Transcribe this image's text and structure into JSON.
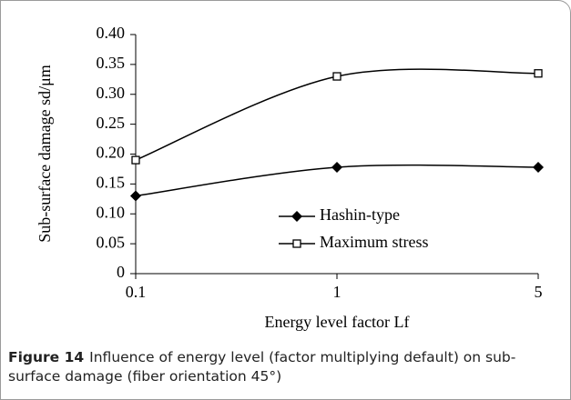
{
  "chart_data": {
    "type": "line",
    "y_label": "Sub-surface damage sd/μm",
    "x_label": "Energy level factor Lf",
    "categories": [
      "0.1",
      "1",
      "5"
    ],
    "series": [
      {
        "name": "Hashin-type",
        "color": "#000000",
        "marker": "diamond",
        "values": [
          0.13,
          0.178,
          0.178
        ]
      },
      {
        "name": "Maximum stress",
        "color": "#000000",
        "marker": "square",
        "values": [
          0.19,
          0.33,
          0.335
        ]
      }
    ],
    "ylim": [
      0,
      0.4
    ],
    "yticks": [
      0,
      {
        "value": 0.05,
        "label": "0.05"
      },
      {
        "value": 0.1,
        "label": "0.10"
      },
      {
        "value": 0.15,
        "label": "0.15"
      },
      {
        "value": 0.2,
        "label": "0.20"
      },
      {
        "value": 0.25,
        "label": "0.25"
      },
      {
        "value": 0.3,
        "label": "0.30"
      },
      {
        "value": 0.35,
        "label": "0.35"
      },
      {
        "value": 0.4,
        "label": "0.40"
      }
    ],
    "grid": false,
    "legend": "center",
    "caption": {
      "label": "Figure 14",
      "text": "Influence of energy level (factor multiplying default) on sub-surface damage (fiber orientation 45°)"
    }
  }
}
